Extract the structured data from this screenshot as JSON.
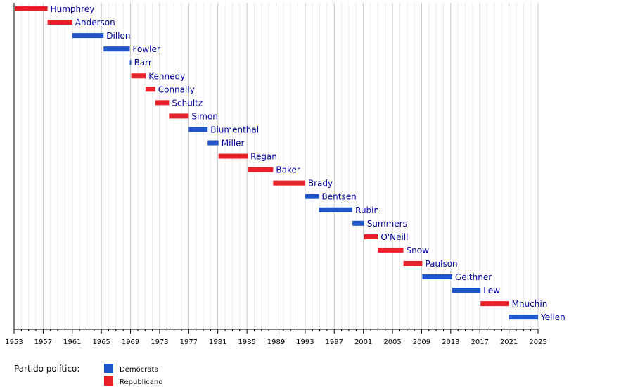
{
  "chart_data": {
    "type": "bar",
    "orientation": "horizontal-timeline",
    "title": "",
    "xlabel": "",
    "ylabel": "",
    "xlim": [
      1953,
      2025
    ],
    "xticks": [
      1953,
      1957,
      1961,
      1965,
      1969,
      1973,
      1977,
      1981,
      1985,
      1989,
      1993,
      1997,
      2001,
      2005,
      2009,
      2013,
      2017,
      2021,
      2025
    ],
    "grid": true,
    "legend_title": "Partido político:",
    "legend_position": "bottom-left",
    "series": [
      {
        "name": "Demócrata",
        "color": "#1f55c8"
      },
      {
        "name": "Republicano",
        "color": "#e8202a"
      }
    ],
    "items": [
      {
        "name": "Humphrey",
        "start": 1953.1,
        "end": 1957.6,
        "party": "Republicano"
      },
      {
        "name": "Anderson",
        "start": 1957.6,
        "end": 1961.0,
        "party": "Republicano"
      },
      {
        "name": "Dillon",
        "start": 1961.0,
        "end": 1965.3,
        "party": "Demócrata"
      },
      {
        "name": "Fowler",
        "start": 1965.3,
        "end": 1968.9,
        "party": "Demócrata"
      },
      {
        "name": "Barr",
        "start": 1968.9,
        "end": 1969.1,
        "party": "Demócrata"
      },
      {
        "name": "Kennedy",
        "start": 1969.1,
        "end": 1971.1,
        "party": "Republicano"
      },
      {
        "name": "Connally",
        "start": 1971.1,
        "end": 1972.4,
        "party": "Republicano"
      },
      {
        "name": "Schultz",
        "start": 1972.4,
        "end": 1974.3,
        "party": "Republicano"
      },
      {
        "name": "Simon",
        "start": 1974.3,
        "end": 1977.0,
        "party": "Republicano"
      },
      {
        "name": "Blumenthal",
        "start": 1977.0,
        "end": 1979.6,
        "party": "Demócrata"
      },
      {
        "name": "Miller",
        "start": 1979.6,
        "end": 1981.1,
        "party": "Demócrata"
      },
      {
        "name": "Regan",
        "start": 1981.1,
        "end": 1985.1,
        "party": "Republicano"
      },
      {
        "name": "Baker",
        "start": 1985.1,
        "end": 1988.6,
        "party": "Republicano"
      },
      {
        "name": "Brady",
        "start": 1988.6,
        "end": 1993.0,
        "party": "Republicano"
      },
      {
        "name": "Bentsen",
        "start": 1993.0,
        "end": 1994.9,
        "party": "Demócrata"
      },
      {
        "name": "Rubin",
        "start": 1994.9,
        "end": 1999.5,
        "party": "Demócrata"
      },
      {
        "name": "Summers",
        "start": 1999.5,
        "end": 2001.1,
        "party": "Demócrata"
      },
      {
        "name": "O'Neill",
        "start": 2001.1,
        "end": 2003.0,
        "party": "Republicano"
      },
      {
        "name": "Snow",
        "start": 2003.0,
        "end": 2006.5,
        "party": "Republicano"
      },
      {
        "name": "Paulson",
        "start": 2006.5,
        "end": 2009.1,
        "party": "Republicano"
      },
      {
        "name": "Geithner",
        "start": 2009.1,
        "end": 2013.2,
        "party": "Demócrata"
      },
      {
        "name": "Lew",
        "start": 2013.2,
        "end": 2017.1,
        "party": "Demócrata"
      },
      {
        "name": "Mnuchin",
        "start": 2017.1,
        "end": 2021.0,
        "party": "Republicano"
      },
      {
        "name": "Yellen",
        "start": 2021.0,
        "end": 2025.0,
        "party": "Demócrata"
      }
    ]
  }
}
